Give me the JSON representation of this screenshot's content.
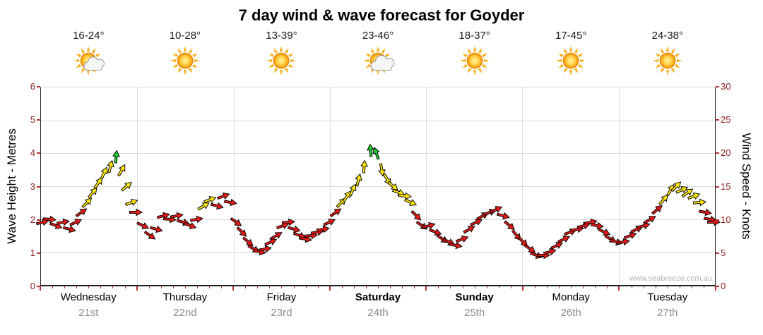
{
  "title": "7 day wind & wave forecast for Goyder",
  "watermark": "www.seabreeze.com.au",
  "axes": {
    "left_title": "Wave Height - Metres",
    "right_title": "Wind Speed - Knots",
    "left_ticks": [
      0,
      1,
      2,
      3,
      4,
      5,
      6
    ],
    "right_ticks": [
      0,
      5,
      10,
      15,
      20,
      25,
      30
    ],
    "left_range": [
      0,
      6
    ],
    "right_range": [
      0,
      30
    ]
  },
  "days": [
    {
      "name": "Wednesday",
      "date": "21st",
      "temp": "16-24°",
      "icon": "sun-cloud",
      "bold": false
    },
    {
      "name": "Thursday",
      "date": "22nd",
      "temp": "10-28°",
      "icon": "sun",
      "bold": false
    },
    {
      "name": "Friday",
      "date": "23rd",
      "temp": "13-39°",
      "icon": "sun",
      "bold": false
    },
    {
      "name": "Saturday",
      "date": "24th",
      "temp": "23-46°",
      "icon": "sun-cloud",
      "bold": true
    },
    {
      "name": "Sunday",
      "date": "25th",
      "temp": "18-37°",
      "icon": "sun",
      "bold": true
    },
    {
      "name": "Monday",
      "date": "26th",
      "temp": "17-45°",
      "icon": "sun",
      "bold": false
    },
    {
      "name": "Tuesday",
      "date": "27th",
      "temp": "24-38°",
      "icon": "sun",
      "bold": false
    }
  ],
  "colors": {
    "r": "#E41A17",
    "y": "#FFE60A",
    "g": "#1ECB2E",
    "tick": "#C03030",
    "tick_text": "#8B2222",
    "grid": "#DCDCDC",
    "date_text": "#8C8C8C"
  },
  "chart_data": {
    "type": "scatter",
    "subtype": "wind-arrow-series",
    "x_unit": "days (0 = start Wednesday 21st, 7 = end Tuesday 27th)",
    "left_axis": {
      "label": "Wave Height - Metres",
      "range": [
        0,
        6
      ]
    },
    "right_axis": {
      "label": "Wind Speed - Knots",
      "range": [
        0,
        30
      ]
    },
    "point_format": [
      "day_offset",
      "wind_knots",
      "arrow_direction_deg",
      "color"
    ],
    "points": [
      [
        0.02,
        9.5,
        -15,
        "r"
      ],
      [
        0.09,
        10,
        5,
        "r"
      ],
      [
        0.16,
        9,
        20,
        "r"
      ],
      [
        0.23,
        9.5,
        -10,
        "r"
      ],
      [
        0.3,
        8.5,
        15,
        "r"
      ],
      [
        0.36,
        9.5,
        -25,
        "r"
      ],
      [
        0.42,
        11,
        -35,
        "r"
      ],
      [
        0.48,
        12.5,
        -45,
        "y"
      ],
      [
        0.54,
        14,
        -50,
        "y"
      ],
      [
        0.6,
        15.5,
        -55,
        "y"
      ],
      [
        0.66,
        17,
        -65,
        "y"
      ],
      [
        0.72,
        18,
        -75,
        "y"
      ],
      [
        0.78,
        19.5,
        -85,
        "g"
      ],
      [
        0.84,
        17.5,
        -60,
        "y"
      ],
      [
        0.89,
        15,
        -40,
        "y"
      ],
      [
        0.94,
        12.5,
        -20,
        "y"
      ],
      [
        0.99,
        11,
        0,
        "r"
      ],
      [
        1.06,
        9,
        25,
        "r"
      ],
      [
        1.13,
        7.5,
        35,
        "r"
      ],
      [
        1.2,
        8.5,
        15,
        "r"
      ],
      [
        1.27,
        10.5,
        -15,
        "r"
      ],
      [
        1.34,
        10,
        5,
        "r"
      ],
      [
        1.41,
        10.5,
        -10,
        "r"
      ],
      [
        1.48,
        9.5,
        15,
        "r"
      ],
      [
        1.55,
        9,
        20,
        "r"
      ],
      [
        1.62,
        10,
        -10,
        "r"
      ],
      [
        1.69,
        12,
        -30,
        "y"
      ],
      [
        1.76,
        13,
        -20,
        "y"
      ],
      [
        1.83,
        12,
        15,
        "r"
      ],
      [
        1.9,
        13.5,
        -20,
        "r"
      ],
      [
        1.97,
        12.5,
        10,
        "r"
      ],
      [
        2.03,
        9.5,
        35,
        "r"
      ],
      [
        2.09,
        8,
        45,
        "r"
      ],
      [
        2.15,
        6.5,
        40,
        "r"
      ],
      [
        2.21,
        5.5,
        30,
        "r"
      ],
      [
        2.27,
        5,
        10,
        "r"
      ],
      [
        2.33,
        5.5,
        -10,
        "r"
      ],
      [
        2.39,
        6.5,
        -25,
        "r"
      ],
      [
        2.45,
        7.5,
        -30,
        "r"
      ],
      [
        2.51,
        9,
        -20,
        "r"
      ],
      [
        2.57,
        9.5,
        -5,
        "r"
      ],
      [
        2.63,
        8.5,
        15,
        "r"
      ],
      [
        2.69,
        7.5,
        20,
        "r"
      ],
      [
        2.75,
        7,
        10,
        "r"
      ],
      [
        2.81,
        7.5,
        -5,
        "r"
      ],
      [
        2.87,
        8,
        -10,
        "r"
      ],
      [
        2.93,
        8.5,
        -10,
        "r"
      ],
      [
        3.0,
        9.5,
        -25,
        "r"
      ],
      [
        3.06,
        11,
        -35,
        "r"
      ],
      [
        3.12,
        12.5,
        -45,
        "y"
      ],
      [
        3.18,
        13.5,
        -55,
        "y"
      ],
      [
        3.24,
        14.5,
        -65,
        "y"
      ],
      [
        3.3,
        16,
        -75,
        "y"
      ],
      [
        3.36,
        18,
        -85,
        "y"
      ],
      [
        3.42,
        20.5,
        -95,
        "g"
      ],
      [
        3.48,
        20,
        -110,
        "g"
      ],
      [
        3.54,
        17.5,
        80,
        "y"
      ],
      [
        3.6,
        16,
        60,
        "y"
      ],
      [
        3.66,
        15,
        40,
        "y"
      ],
      [
        3.72,
        14,
        20,
        "y"
      ],
      [
        3.78,
        13.5,
        5,
        "y"
      ],
      [
        3.84,
        12.5,
        25,
        "y"
      ],
      [
        3.9,
        10.5,
        45,
        "r"
      ],
      [
        3.96,
        9,
        35,
        "r"
      ],
      [
        4.03,
        9,
        -15,
        "r"
      ],
      [
        4.1,
        8,
        20,
        "r"
      ],
      [
        4.17,
        7,
        35,
        "r"
      ],
      [
        4.24,
        6.5,
        25,
        "r"
      ],
      [
        4.31,
        6,
        10,
        "r"
      ],
      [
        4.38,
        7,
        -20,
        "r"
      ],
      [
        4.45,
        8.5,
        -30,
        "r"
      ],
      [
        4.52,
        9.5,
        -25,
        "r"
      ],
      [
        4.59,
        10.5,
        -30,
        "r"
      ],
      [
        4.66,
        11,
        -20,
        "r"
      ],
      [
        4.73,
        11.5,
        -25,
        "r"
      ],
      [
        4.8,
        10.5,
        15,
        "r"
      ],
      [
        4.87,
        9,
        40,
        "r"
      ],
      [
        4.94,
        7.5,
        50,
        "r"
      ],
      [
        5.01,
        6.5,
        45,
        "r"
      ],
      [
        5.08,
        5.5,
        35,
        "r"
      ],
      [
        5.15,
        4.5,
        20,
        "r"
      ],
      [
        5.22,
        4.5,
        0,
        "r"
      ],
      [
        5.29,
        5,
        -15,
        "r"
      ],
      [
        5.36,
        6,
        -25,
        "r"
      ],
      [
        5.43,
        7,
        -25,
        "r"
      ],
      [
        5.5,
        8,
        -20,
        "r"
      ],
      [
        5.57,
        8.5,
        -10,
        "r"
      ],
      [
        5.64,
        9,
        -15,
        "r"
      ],
      [
        5.71,
        9.5,
        -10,
        "r"
      ],
      [
        5.78,
        9,
        10,
        "r"
      ],
      [
        5.85,
        8,
        25,
        "r"
      ],
      [
        5.92,
        7,
        30,
        "r"
      ],
      [
        5.98,
        6.5,
        15,
        "r"
      ],
      [
        6.05,
        6.5,
        -10,
        "r"
      ],
      [
        6.12,
        7.5,
        -20,
        "r"
      ],
      [
        6.19,
        8.5,
        -25,
        "r"
      ],
      [
        6.26,
        9,
        -15,
        "r"
      ],
      [
        6.33,
        10,
        -30,
        "r"
      ],
      [
        6.4,
        11.5,
        -40,
        "r"
      ],
      [
        6.47,
        13,
        -50,
        "y"
      ],
      [
        6.54,
        14.5,
        -60,
        "y"
      ],
      [
        6.6,
        15,
        -45,
        "y"
      ],
      [
        6.66,
        14.5,
        -25,
        "y"
      ],
      [
        6.72,
        14,
        -35,
        "y"
      ],
      [
        6.78,
        13.5,
        -20,
        "y"
      ],
      [
        6.84,
        12.5,
        -5,
        "y"
      ],
      [
        6.9,
        11,
        10,
        "r"
      ],
      [
        6.95,
        10,
        10,
        "r"
      ],
      [
        6.99,
        9.5,
        0,
        "r"
      ]
    ]
  }
}
